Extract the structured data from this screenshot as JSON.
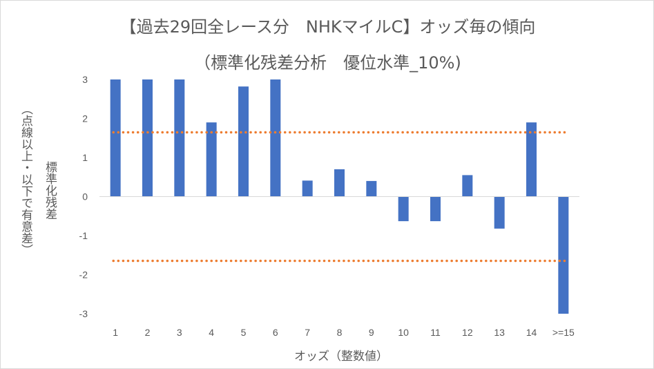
{
  "chart_data": {
    "type": "bar",
    "title": "【過去29回全レース分　NHKマイルC】オッズ毎の傾向",
    "subtitle": "（標準化残差分析　優位水準_10%)",
    "xlabel": "オッズ（整数値）",
    "ylabel": "標準化残差",
    "ylabel_note": "（点線以上・以下で有意差）",
    "categories": [
      "1",
      "2",
      "3",
      "4",
      "5",
      "6",
      "7",
      "8",
      "9",
      "10",
      "11",
      "12",
      "13",
      "14",
      ">=15"
    ],
    "values": [
      3.0,
      3.0,
      3.0,
      1.9,
      2.82,
      3.0,
      0.41,
      0.7,
      0.4,
      -0.63,
      -0.63,
      0.55,
      -0.82,
      1.9,
      -3.0
    ],
    "ylim": [
      -3,
      3
    ],
    "yticks": [
      "3",
      "2",
      "1",
      "0",
      "-1",
      "-2",
      "-3"
    ],
    "threshold_lines": [
      1.645,
      -1.645
    ],
    "grid": false,
    "legend": "none",
    "colors": {
      "bar": "#4472c4",
      "threshold": "#ed7d31",
      "text": "#595959",
      "axis": "#d9d9d9"
    }
  }
}
